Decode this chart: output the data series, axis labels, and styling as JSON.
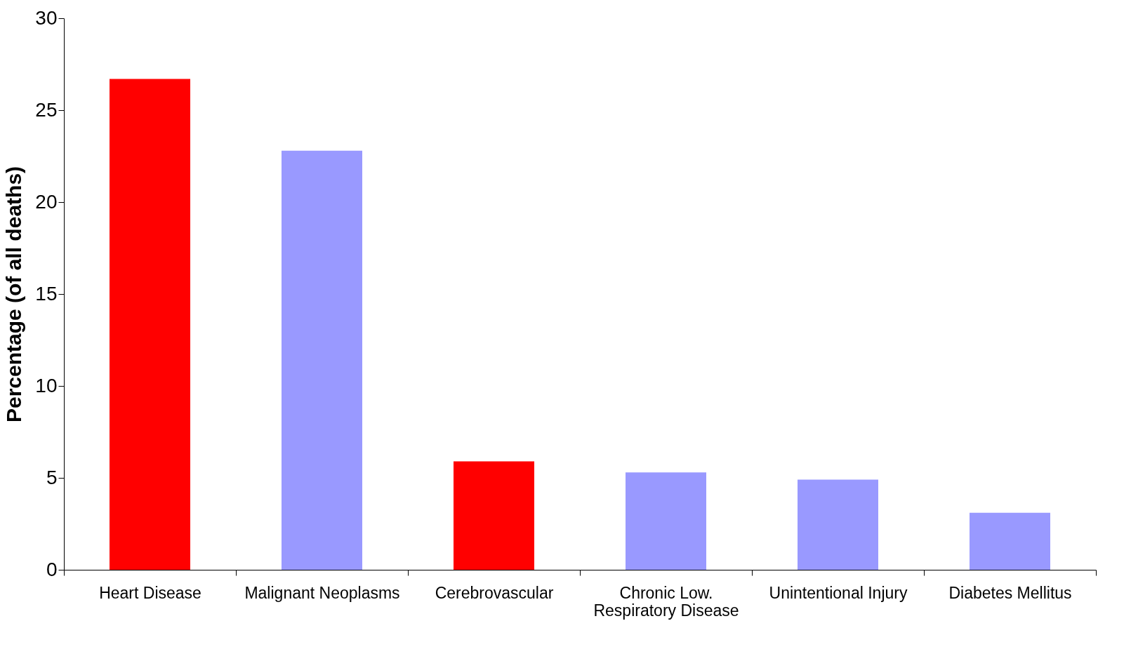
{
  "chart_data": {
    "type": "bar",
    "ylabel": "Percentage (of all deaths)",
    "categories": [
      "Heart Disease",
      "Malignant Neoplasms",
      "Cerebrovascular",
      "Chronic Low. Respiratory Disease",
      "Unintentional Injury",
      "Diabetes Mellitus"
    ],
    "values": [
      26.7,
      22.8,
      5.9,
      5.3,
      4.9,
      3.1
    ],
    "colors": [
      "#ff0000",
      "#9999ff",
      "#ff0000",
      "#9999ff",
      "#9999ff",
      "#9999ff"
    ],
    "ylim": [
      0,
      30
    ],
    "yticks": [
      0,
      5,
      10,
      15,
      20,
      25,
      30
    ],
    "grid": false
  }
}
